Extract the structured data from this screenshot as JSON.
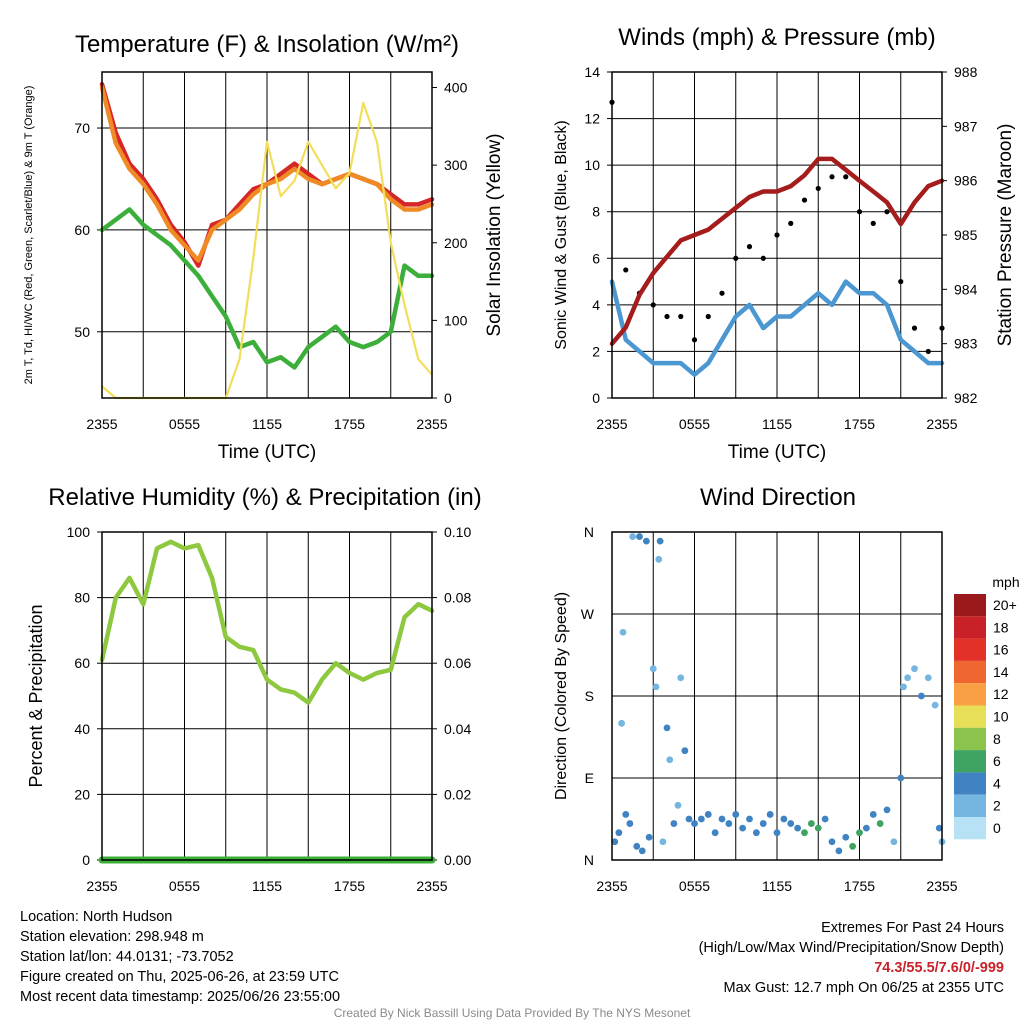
{
  "chart_data": [
    {
      "type": "line",
      "title": "Temperature (F) & Insolation (W/m²)",
      "xlabel": "Time (UTC)",
      "ylabel": "2m T, Td, HI/WC (Red, Green, Scarlet/Blue) & 9m T (Orange)",
      "ylabel_right": "Solar Insolation (Yellow)",
      "x_ticks": [
        "2355",
        "0555",
        "1155",
        "1755",
        "2355"
      ],
      "ylim": [
        43.5,
        75.5
      ],
      "y_ticks": [
        50,
        60,
        70
      ],
      "ylim_right": [
        0,
        420
      ],
      "y_ticks_right": [
        0,
        100,
        200,
        300,
        400
      ],
      "x_hours": [
        0,
        1,
        2,
        3,
        4,
        5,
        6,
        7,
        8,
        9,
        10,
        11,
        12,
        13,
        14,
        15,
        16,
        17,
        18,
        19,
        20,
        21,
        22,
        23,
        24
      ],
      "series": [
        {
          "name": "2m T",
          "color": "#d62728",
          "values": [
            74.3,
            69.5,
            66.5,
            65.0,
            63.0,
            60.5,
            58.8,
            56.5,
            60.5,
            61.0,
            62.5,
            64.0,
            64.5,
            65.5,
            66.5,
            65.5,
            64.5,
            65.0,
            65.5,
            65.0,
            64.5,
            63.5,
            62.5,
            62.5,
            63.0
          ]
        },
        {
          "name": "2m Td",
          "color": "#3cae3a",
          "values": [
            60.0,
            61.0,
            62.0,
            60.5,
            59.5,
            58.5,
            57.0,
            55.5,
            53.5,
            51.5,
            48.5,
            49.0,
            47.0,
            47.5,
            46.5,
            48.5,
            49.5,
            50.5,
            49.0,
            48.5,
            49.0,
            50.0,
            56.5,
            55.5,
            55.5
          ]
        },
        {
          "name": "9m T",
          "color": "#f08a24",
          "values": [
            74.0,
            68.5,
            66.0,
            64.5,
            62.5,
            60.0,
            58.5,
            57.0,
            60.0,
            61.0,
            62.0,
            63.5,
            64.5,
            65.0,
            66.0,
            65.0,
            64.5,
            65.0,
            65.5,
            65.0,
            64.5,
            63.0,
            62.0,
            62.0,
            62.5
          ]
        },
        {
          "name": "Solar Insolation",
          "color": "#f3de5a",
          "values": [
            15,
            0,
            0,
            0,
            0,
            0,
            0,
            0,
            0,
            0,
            50,
            180,
            330,
            260,
            280,
            330,
            300,
            270,
            290,
            380,
            330,
            200,
            120,
            50,
            30
          ]
        }
      ]
    },
    {
      "type": "line",
      "title": "Winds (mph) & Pressure (mb)",
      "xlabel": "Time (UTC)",
      "ylabel": "Sonic Wind & Gust (Blue, Black)",
      "ylabel_right": "Station Pressure (Maroon)",
      "x_ticks": [
        "2355",
        "0555",
        "1155",
        "1755",
        "2355"
      ],
      "ylim": [
        0,
        14
      ],
      "y_ticks": [
        0,
        2,
        4,
        6,
        8,
        10,
        12,
        14
      ],
      "ylim_right": [
        982,
        988
      ],
      "y_ticks_right": [
        982,
        983,
        984,
        985,
        986,
        987,
        988
      ],
      "x_hours": [
        0,
        1,
        2,
        3,
        4,
        5,
        6,
        7,
        8,
        9,
        10,
        11,
        12,
        13,
        14,
        15,
        16,
        17,
        18,
        19,
        20,
        21,
        22,
        23,
        24
      ],
      "series": [
        {
          "name": "Sonic Wind",
          "color": "#4b97d2",
          "values": [
            5.0,
            2.5,
            2.0,
            1.5,
            1.5,
            1.5,
            1.0,
            1.5,
            2.5,
            3.5,
            4.0,
            3.0,
            3.5,
            3.5,
            4.0,
            4.5,
            4.0,
            5.0,
            4.5,
            4.5,
            4.0,
            2.5,
            2.0,
            1.5,
            1.5
          ]
        },
        {
          "name": "Gust",
          "color": "#000000",
          "values": [
            12.7,
            5.5,
            4.5,
            4.0,
            3.5,
            3.5,
            2.5,
            3.5,
            4.5,
            6.0,
            6.5,
            6.0,
            7.0,
            7.5,
            8.5,
            9.0,
            9.5,
            9.5,
            8.0,
            7.5,
            8.0,
            5.0,
            3.0,
            2.0,
            3.0
          ]
        },
        {
          "name": "Station Pressure",
          "color": "#a51c1c",
          "values": [
            983.0,
            983.3,
            983.9,
            984.3,
            984.6,
            984.9,
            985.0,
            985.1,
            985.3,
            985.5,
            985.7,
            985.8,
            985.8,
            985.9,
            986.1,
            986.4,
            986.4,
            986.2,
            986.0,
            985.8,
            985.6,
            985.2,
            985.6,
            985.9,
            986.0
          ]
        }
      ]
    },
    {
      "type": "line",
      "title": "Relative Humidity (%) & Precipitation (in)",
      "ylabel": "Percent & Precipitation",
      "x_ticks": [
        "2355",
        "0555",
        "1155",
        "1755",
        "2355"
      ],
      "ylim": [
        0,
        100
      ],
      "y_ticks": [
        0,
        20,
        40,
        60,
        80,
        100
      ],
      "ylim_right": [
        0,
        0.1
      ],
      "y_ticks_right": [
        "0.00",
        "0.02",
        "0.04",
        "0.06",
        "0.08",
        "0.10"
      ],
      "x_hours": [
        0,
        1,
        2,
        3,
        4,
        5,
        6,
        7,
        8,
        9,
        10,
        11,
        12,
        13,
        14,
        15,
        16,
        17,
        18,
        19,
        20,
        21,
        22,
        23,
        24
      ],
      "series": [
        {
          "name": "Relative Humidity",
          "color": "#8dc83f",
          "values": [
            61,
            80,
            86,
            78,
            95,
            97,
            95,
            96,
            86,
            68,
            65,
            64,
            55,
            52,
            51,
            48,
            55,
            60,
            57,
            55,
            57,
            58,
            74,
            78,
            76
          ]
        },
        {
          "name": "Precipitation",
          "color": "#3cae3a",
          "values": [
            0,
            0,
            0,
            0,
            0,
            0,
            0,
            0,
            0,
            0,
            0,
            0,
            0,
            0,
            0,
            0,
            0,
            0,
            0,
            0,
            0,
            0,
            0,
            0,
            0
          ]
        }
      ]
    },
    {
      "type": "scatter",
      "title": "Wind Direction",
      "ylabel": "Direction (Colored By Speed)",
      "x_ticks": [
        "2355",
        "0555",
        "1155",
        "1755",
        "2355"
      ],
      "y_ticks": [
        "N",
        "E",
        "S",
        "W",
        "N"
      ],
      "ylim": [
        0,
        360
      ],
      "legend_title": "mph",
      "legend_labels": [
        "20+",
        "18",
        "16",
        "14",
        "12",
        "10",
        "8",
        "6",
        "4",
        "2",
        "0"
      ],
      "legend_colors": [
        "#99191c",
        "#c82127",
        "#e33128",
        "#f06630",
        "#f9a044",
        "#e6df57",
        "#8cc34c",
        "#3fa462",
        "#3f83c2",
        "#75b6e0",
        "#b7e2f6"
      ],
      "points": [
        {
          "hour": 0.2,
          "dir": 20,
          "speed": 3
        },
        {
          "hour": 0.5,
          "dir": 30,
          "speed": 4
        },
        {
          "hour": 0.7,
          "dir": 150,
          "speed": 1
        },
        {
          "hour": 0.8,
          "dir": 250,
          "speed": 1
        },
        {
          "hour": 1.0,
          "dir": 50,
          "speed": 3
        },
        {
          "hour": 1.3,
          "dir": 40,
          "speed": 4
        },
        {
          "hour": 1.5,
          "dir": 355,
          "speed": 2
        },
        {
          "hour": 1.8,
          "dir": 15,
          "speed": 4
        },
        {
          "hour": 2.0,
          "dir": 355,
          "speed": 3
        },
        {
          "hour": 2.2,
          "dir": 10,
          "speed": 4
        },
        {
          "hour": 2.5,
          "dir": 350,
          "speed": 4
        },
        {
          "hour": 2.7,
          "dir": 25,
          "speed": 3
        },
        {
          "hour": 3.0,
          "dir": 210,
          "speed": 2
        },
        {
          "hour": 3.2,
          "dir": 190,
          "speed": 1
        },
        {
          "hour": 3.4,
          "dir": 330,
          "speed": 1
        },
        {
          "hour": 3.5,
          "dir": 350,
          "speed": 3
        },
        {
          "hour": 3.7,
          "dir": 20,
          "speed": 2
        },
        {
          "hour": 4.0,
          "dir": 145,
          "speed": 3
        },
        {
          "hour": 4.2,
          "dir": 110,
          "speed": 2
        },
        {
          "hour": 4.5,
          "dir": 40,
          "speed": 3
        },
        {
          "hour": 4.8,
          "dir": 60,
          "speed": 1
        },
        {
          "hour": 5.0,
          "dir": 200,
          "speed": 1
        },
        {
          "hour": 5.3,
          "dir": 120,
          "speed": 3
        },
        {
          "hour": 5.6,
          "dir": 45,
          "speed": 4
        },
        {
          "hour": 6.0,
          "dir": 40,
          "speed": 3
        },
        {
          "hour": 6.5,
          "dir": 45,
          "speed": 3
        },
        {
          "hour": 7.0,
          "dir": 50,
          "speed": 4
        },
        {
          "hour": 7.5,
          "dir": 30,
          "speed": 4
        },
        {
          "hour": 8.0,
          "dir": 45,
          "speed": 4
        },
        {
          "hour": 8.5,
          "dir": 40,
          "speed": 3
        },
        {
          "hour": 9.0,
          "dir": 50,
          "speed": 3
        },
        {
          "hour": 9.5,
          "dir": 35,
          "speed": 4
        },
        {
          "hour": 10.0,
          "dir": 45,
          "speed": 4
        },
        {
          "hour": 10.5,
          "dir": 30,
          "speed": 3
        },
        {
          "hour": 11.0,
          "dir": 40,
          "speed": 4
        },
        {
          "hour": 11.5,
          "dir": 50,
          "speed": 4
        },
        {
          "hour": 12.0,
          "dir": 30,
          "speed": 3
        },
        {
          "hour": 12.5,
          "dir": 45,
          "speed": 4
        },
        {
          "hour": 13.0,
          "dir": 40,
          "speed": 4
        },
        {
          "hour": 13.5,
          "dir": 35,
          "speed": 3
        },
        {
          "hour": 14.0,
          "dir": 30,
          "speed": 5
        },
        {
          "hour": 14.5,
          "dir": 40,
          "speed": 6
        },
        {
          "hour": 15.0,
          "dir": 35,
          "speed": 5
        },
        {
          "hour": 15.5,
          "dir": 45,
          "speed": 4
        },
        {
          "hour": 16.0,
          "dir": 20,
          "speed": 4
        },
        {
          "hour": 16.5,
          "dir": 10,
          "speed": 3
        },
        {
          "hour": 17.0,
          "dir": 25,
          "speed": 4
        },
        {
          "hour": 17.5,
          "dir": 15,
          "speed": 6
        },
        {
          "hour": 18.0,
          "dir": 30,
          "speed": 5
        },
        {
          "hour": 18.5,
          "dir": 35,
          "speed": 4
        },
        {
          "hour": 19.0,
          "dir": 50,
          "speed": 3
        },
        {
          "hour": 19.5,
          "dir": 40,
          "speed": 6
        },
        {
          "hour": 20.0,
          "dir": 55,
          "speed": 3
        },
        {
          "hour": 20.5,
          "dir": 20,
          "speed": 2
        },
        {
          "hour": 21.0,
          "dir": 90,
          "speed": 3
        },
        {
          "hour": 21.2,
          "dir": 190,
          "speed": 2
        },
        {
          "hour": 21.5,
          "dir": 200,
          "speed": 2
        },
        {
          "hour": 22.0,
          "dir": 210,
          "speed": 2
        },
        {
          "hour": 22.5,
          "dir": 180,
          "speed": 3
        },
        {
          "hour": 23.0,
          "dir": 200,
          "speed": 2
        },
        {
          "hour": 23.5,
          "dir": 170,
          "speed": 1
        },
        {
          "hour": 23.8,
          "dir": 35,
          "speed": 3
        },
        {
          "hour": 24.0,
          "dir": 20,
          "speed": 2
        }
      ]
    }
  ],
  "info": {
    "location": "Location: North Hudson",
    "elevation": "Station elevation: 298.948 m",
    "latlon": "Station lat/lon: 44.0131; -73.7052",
    "created": "Figure created on Thu, 2025-06-26, at 23:59 UTC",
    "recent": "Most recent data timestamp: 2025/06/26 23:55:00",
    "extremes_title": "Extremes For Past 24 Hours",
    "extremes_legend": "(High/Low/Max Wind/Precipitation/Snow Depth)",
    "extremes_values": "74.3/55.5/7.6/0/-999",
    "max_gust": "Max Gust: 12.7 mph On 06/25 at 2355 UTC",
    "credit": "Created By Nick Bassill Using Data Provided By The NYS Mesonet"
  }
}
